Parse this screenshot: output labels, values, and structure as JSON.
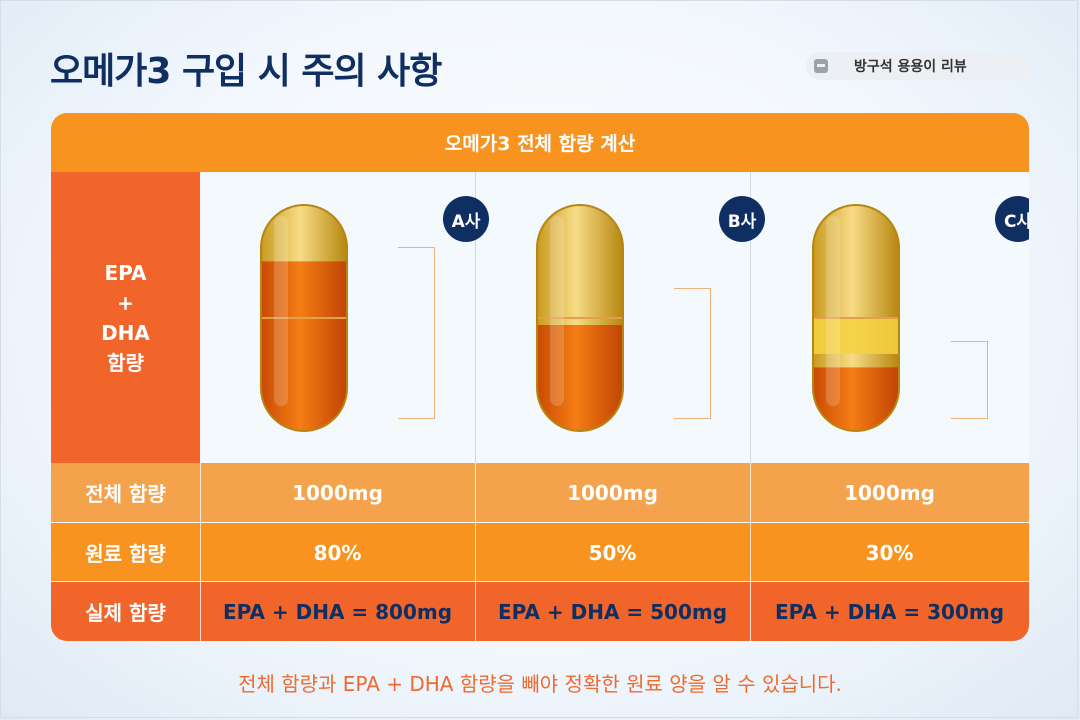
{
  "title": "오메가3 구입 시 주의 사항",
  "source_badge": "방구석 용용이 리뷰",
  "table": {
    "header": "오메가3 전체 함량 계산",
    "left_label_lines": [
      "EPA",
      "+",
      "DHA",
      "함량"
    ],
    "companies": [
      {
        "name": "A사",
        "amount": "800mg",
        "fill_fraction": 0.8
      },
      {
        "name": "B사",
        "amount": "500mg",
        "fill_fraction": 0.5
      },
      {
        "name": "C사",
        "amount": "300mg",
        "fill_fraction": 0.3
      }
    ],
    "rows": [
      {
        "label": "전체 함량",
        "values": [
          "1000mg",
          "1000mg",
          "1000mg"
        ]
      },
      {
        "label": "원료 함량",
        "values": [
          "80%",
          "50%",
          "30%"
        ]
      },
      {
        "label": "실제 함량",
        "values": [
          "EPA + DHA = 800mg",
          "EPA + DHA = 500mg",
          "EPA + DHA = 300mg"
        ]
      }
    ]
  },
  "footnote": "전체 함량과 EPA + DHA 함량을 빼야 정확한 원료 양을 알 수 있습니다.",
  "colors": {
    "navy": "#0f2f63",
    "orange": "#f7931e",
    "red_orange": "#f2652a",
    "light_orange": "#f5a24d"
  }
}
